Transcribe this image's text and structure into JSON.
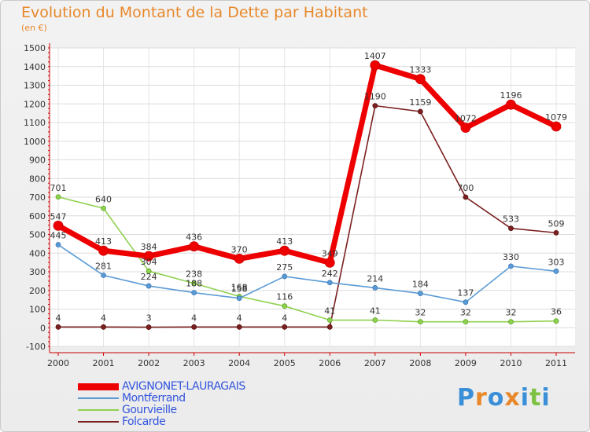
{
  "title": "Evolution du Montant de la Dette par Habitant",
  "subtitle": "(en €)",
  "logo": {
    "text": [
      "P",
      "r",
      "o",
      "x",
      "i",
      "t",
      "i"
    ],
    "colors": [
      "#3a8fd8",
      "#e8882a",
      "#3a8fd8",
      "#e8882a",
      "#3a8fd8",
      "#7cc142",
      "#3a8fd8"
    ]
  },
  "chart_data": {
    "type": "line",
    "title": "Evolution du Montant de la Dette par Habitant",
    "ylabel": "(en €)",
    "xlabel": "",
    "x": [
      "2000",
      "2001",
      "2002",
      "2003",
      "2004",
      "2005",
      "2006",
      "2007",
      "2008",
      "2009",
      "2010",
      "2011"
    ],
    "ylim": [
      -100,
      1500
    ],
    "yticks": [
      "-100",
      "0",
      "100",
      "200",
      "300",
      "400",
      "500",
      "600",
      "700",
      "800",
      "900",
      "1000",
      "1100",
      "1200",
      "1300",
      "1400",
      "1500"
    ],
    "grid": true,
    "legend_position": "bottom-left",
    "series": [
      {
        "name": "AVIGNONET-LAURAGAIS",
        "color": "#ee0000",
        "values": [
          547,
          413,
          384,
          436,
          370,
          413,
          349,
          1407,
          1333,
          1072,
          1196,
          1079
        ],
        "labels": [
          "547",
          "413",
          "384",
          "436",
          "370",
          "413",
          "349",
          "1407",
          "1333",
          "1072",
          "1196",
          "1079"
        ]
      },
      {
        "name": "Montferrand",
        "color": "#5b9bd5",
        "values": [
          445,
          281,
          224,
          188,
          158,
          275,
          242,
          214,
          184,
          137,
          330,
          303
        ],
        "labels": [
          "445",
          "281",
          "224",
          "188",
          "158",
          "275",
          "242",
          "214",
          "184",
          "137",
          "330",
          "303"
        ]
      },
      {
        "name": "Gourvieille",
        "color": "#8fd14f",
        "values": [
          701,
          640,
          304,
          238,
          168,
          116,
          41,
          41,
          32,
          32,
          32,
          36
        ],
        "labels": [
          "701",
          "640",
          "304",
          "238",
          "168",
          "116",
          "41",
          "41",
          "32",
          "32",
          "32",
          "36"
        ]
      },
      {
        "name": "Folcarde",
        "color": "#7b2020",
        "values": [
          4,
          4,
          3,
          4,
          4,
          4,
          4,
          1190,
          1159,
          700,
          533,
          509
        ],
        "labels": [
          "4",
          "4",
          "3",
          "4",
          "4",
          "4",
          "",
          "1190",
          "1159",
          "700",
          "533",
          "509"
        ]
      }
    ]
  }
}
